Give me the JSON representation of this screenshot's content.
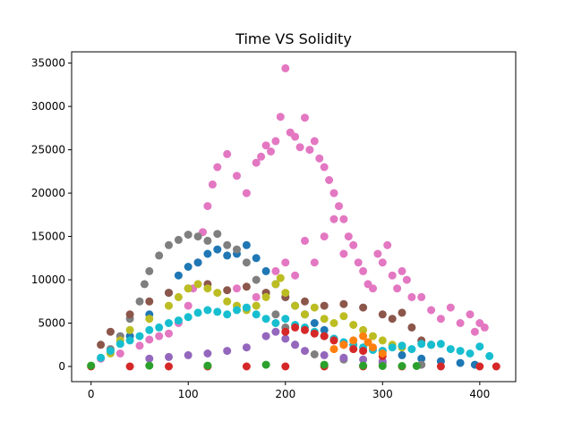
{
  "chart_data": {
    "type": "scatter",
    "title": "Time VS Solidity",
    "xlabel": "",
    "ylabel": "",
    "xlim": [
      -20,
      437
    ],
    "ylim": [
      -1750,
      36300
    ],
    "xticks": [
      0,
      100,
      200,
      300,
      400
    ],
    "yticks": [
      0,
      5000,
      10000,
      15000,
      20000,
      25000,
      30000,
      35000
    ],
    "grid": false,
    "legend": "none",
    "series": [
      {
        "color": "#e377c2",
        "values": [
          [
            10,
            900
          ],
          [
            30,
            1500
          ],
          [
            50,
            2400
          ],
          [
            60,
            3100
          ],
          [
            70,
            3500
          ],
          [
            80,
            3800
          ],
          [
            90,
            5000
          ],
          [
            100,
            7000
          ],
          [
            105,
            9000
          ],
          [
            110,
            12000
          ],
          [
            115,
            15500
          ],
          [
            120,
            18500
          ],
          [
            125,
            21000
          ],
          [
            130,
            23000
          ],
          [
            140,
            24500
          ],
          [
            150,
            22000
          ],
          [
            160,
            20000
          ],
          [
            170,
            23500
          ],
          [
            175,
            24200
          ],
          [
            180,
            25500
          ],
          [
            185,
            24800
          ],
          [
            190,
            26000
          ],
          [
            195,
            28800
          ],
          [
            200,
            34400
          ],
          [
            205,
            27000
          ],
          [
            210,
            26500
          ],
          [
            215,
            25300
          ],
          [
            220,
            28700
          ],
          [
            225,
            25000
          ],
          [
            230,
            26000
          ],
          [
            235,
            24000
          ],
          [
            240,
            23000
          ],
          [
            245,
            21500
          ],
          [
            250,
            20000
          ],
          [
            255,
            18500
          ],
          [
            260,
            17000
          ],
          [
            265,
            15000
          ],
          [
            270,
            14000
          ],
          [
            275,
            12000
          ],
          [
            280,
            11000
          ],
          [
            285,
            9500
          ],
          [
            290,
            9000
          ],
          [
            295,
            13000
          ],
          [
            300,
            12000
          ],
          [
            305,
            14000
          ],
          [
            310,
            10500
          ],
          [
            315,
            9000
          ],
          [
            320,
            11000
          ],
          [
            325,
            10000
          ],
          [
            330,
            8000
          ],
          [
            340,
            8000
          ],
          [
            350,
            6500
          ],
          [
            360,
            5500
          ],
          [
            370,
            6800
          ],
          [
            380,
            5000
          ],
          [
            390,
            6000
          ],
          [
            395,
            4000
          ],
          [
            400,
            5000
          ],
          [
            405,
            4500
          ],
          [
            200,
            12000
          ],
          [
            220,
            14500
          ],
          [
            240,
            15000
          ],
          [
            250,
            17000
          ],
          [
            260,
            13000
          ],
          [
            150,
            9000
          ],
          [
            170,
            8000
          ],
          [
            190,
            11000
          ],
          [
            210,
            10500
          ],
          [
            230,
            12000
          ]
        ]
      },
      {
        "color": "#1f77b4",
        "values": [
          [
            40,
            3500
          ],
          [
            60,
            6000
          ],
          [
            80,
            8500
          ],
          [
            90,
            10500
          ],
          [
            100,
            11500
          ],
          [
            110,
            12000
          ],
          [
            120,
            13000
          ],
          [
            130,
            13500
          ],
          [
            140,
            12800
          ],
          [
            150,
            13000
          ],
          [
            160,
            14000
          ],
          [
            170,
            12500
          ],
          [
            180,
            11000
          ],
          [
            190,
            9500
          ],
          [
            200,
            8000
          ],
          [
            210,
            7000
          ],
          [
            220,
            6000
          ],
          [
            230,
            5000
          ],
          [
            240,
            4200
          ],
          [
            250,
            3200
          ],
          [
            270,
            2500
          ],
          [
            300,
            1800
          ],
          [
            320,
            1300
          ],
          [
            340,
            900
          ],
          [
            360,
            600
          ],
          [
            380,
            400
          ],
          [
            395,
            200
          ]
        ]
      },
      {
        "color": "#7f7f7f",
        "values": [
          [
            20,
            2000
          ],
          [
            30,
            3500
          ],
          [
            40,
            5500
          ],
          [
            50,
            7500
          ],
          [
            55,
            9500
          ],
          [
            60,
            11000
          ],
          [
            70,
            12800
          ],
          [
            80,
            14000
          ],
          [
            90,
            14600
          ],
          [
            100,
            15200
          ],
          [
            110,
            15000
          ],
          [
            120,
            14500
          ],
          [
            130,
            15300
          ],
          [
            140,
            14000
          ],
          [
            150,
            13500
          ],
          [
            160,
            12000
          ],
          [
            170,
            10000
          ],
          [
            180,
            8500
          ],
          [
            190,
            6000
          ],
          [
            200,
            4500
          ],
          [
            210,
            2500
          ],
          [
            230,
            1400
          ],
          [
            260,
            800
          ],
          [
            300,
            400
          ],
          [
            340,
            200
          ]
        ]
      },
      {
        "color": "#8c564b",
        "values": [
          [
            10,
            2500
          ],
          [
            20,
            4000
          ],
          [
            40,
            6000
          ],
          [
            60,
            7500
          ],
          [
            80,
            8500
          ],
          [
            100,
            9000
          ],
          [
            120,
            9500
          ],
          [
            140,
            8800
          ],
          [
            160,
            9200
          ],
          [
            180,
            8500
          ],
          [
            200,
            8000
          ],
          [
            220,
            7500
          ],
          [
            240,
            7000
          ],
          [
            260,
            7200
          ],
          [
            280,
            6800
          ],
          [
            300,
            6000
          ],
          [
            310,
            5500
          ],
          [
            320,
            6200
          ],
          [
            330,
            4500
          ],
          [
            340,
            3000
          ],
          [
            350,
            2500
          ]
        ]
      },
      {
        "color": "#bcbd22",
        "values": [
          [
            20,
            1500
          ],
          [
            30,
            3000
          ],
          [
            40,
            4200
          ],
          [
            60,
            5500
          ],
          [
            80,
            7000
          ],
          [
            90,
            8000
          ],
          [
            100,
            9000
          ],
          [
            110,
            9500
          ],
          [
            120,
            9000
          ],
          [
            130,
            8500
          ],
          [
            140,
            7500
          ],
          [
            150,
            7000
          ],
          [
            160,
            6500
          ],
          [
            170,
            7000
          ],
          [
            180,
            8000
          ],
          [
            190,
            9500
          ],
          [
            195,
            10200
          ],
          [
            200,
            8500
          ],
          [
            210,
            7000
          ],
          [
            220,
            6000
          ],
          [
            230,
            6800
          ],
          [
            240,
            5500
          ],
          [
            250,
            5000
          ],
          [
            260,
            5800
          ],
          [
            270,
            4800
          ],
          [
            280,
            4200
          ],
          [
            290,
            3500
          ],
          [
            300,
            3000
          ],
          [
            310,
            2500
          ],
          [
            320,
            2200
          ]
        ]
      },
      {
        "color": "#17becf",
        "values": [
          [
            10,
            1000
          ],
          [
            20,
            1800
          ],
          [
            30,
            2600
          ],
          [
            40,
            3000
          ],
          [
            50,
            3500
          ],
          [
            60,
            4200
          ],
          [
            70,
            4500
          ],
          [
            80,
            5000
          ],
          [
            90,
            5300
          ],
          [
            100,
            5700
          ],
          [
            110,
            6200
          ],
          [
            120,
            6500
          ],
          [
            130,
            6300
          ],
          [
            140,
            6000
          ],
          [
            150,
            6500
          ],
          [
            160,
            6800
          ],
          [
            170,
            6000
          ],
          [
            180,
            5500
          ],
          [
            190,
            5000
          ],
          [
            200,
            5500
          ],
          [
            210,
            4800
          ],
          [
            220,
            4500
          ],
          [
            230,
            4000
          ],
          [
            240,
            3500
          ],
          [
            250,
            3200
          ],
          [
            260,
            2800
          ],
          [
            270,
            2500
          ],
          [
            280,
            2200
          ],
          [
            290,
            1900
          ],
          [
            300,
            1800
          ],
          [
            310,
            2200
          ],
          [
            320,
            2400
          ],
          [
            330,
            2000
          ],
          [
            340,
            2600
          ],
          [
            350,
            2500
          ],
          [
            360,
            2600
          ],
          [
            370,
            2000
          ],
          [
            380,
            1800
          ],
          [
            390,
            1500
          ],
          [
            400,
            2300
          ],
          [
            410,
            1200
          ]
        ]
      },
      {
        "color": "#9467bd",
        "values": [
          [
            60,
            900
          ],
          [
            80,
            1100
          ],
          [
            100,
            1300
          ],
          [
            120,
            1500
          ],
          [
            140,
            1800
          ],
          [
            160,
            2200
          ],
          [
            180,
            3500
          ],
          [
            190,
            4000
          ],
          [
            200,
            3200
          ],
          [
            210,
            2500
          ],
          [
            220,
            1800
          ],
          [
            240,
            1300
          ],
          [
            260,
            1000
          ],
          [
            280,
            800
          ],
          [
            300,
            600
          ]
        ]
      },
      {
        "color": "#d62728",
        "values": [
          [
            0,
            0
          ],
          [
            40,
            0
          ],
          [
            80,
            0
          ],
          [
            120,
            0
          ],
          [
            160,
            0
          ],
          [
            200,
            0
          ],
          [
            240,
            0
          ],
          [
            280,
            0
          ],
          [
            320,
            0
          ],
          [
            360,
            0
          ],
          [
            400,
            0
          ],
          [
            417,
            0
          ],
          [
            200,
            4000
          ],
          [
            210,
            4500
          ],
          [
            220,
            4200
          ],
          [
            230,
            3800
          ],
          [
            240,
            3500
          ],
          [
            250,
            3000
          ],
          [
            260,
            2500
          ],
          [
            270,
            2000
          ],
          [
            280,
            1800
          ],
          [
            300,
            1200
          ]
        ]
      },
      {
        "color": "#2ca02c",
        "values": [
          [
            0,
            100
          ],
          [
            60,
            100
          ],
          [
            120,
            100
          ],
          [
            180,
            200
          ],
          [
            240,
            200
          ],
          [
            280,
            100
          ],
          [
            300,
            50
          ],
          [
            320,
            50
          ],
          [
            335,
            50
          ]
        ]
      },
      {
        "color": "#ff7f0e",
        "values": [
          [
            250,
            2000
          ],
          [
            260,
            2500
          ],
          [
            270,
            3000
          ],
          [
            280,
            3500
          ],
          [
            285,
            2800
          ],
          [
            290,
            2200
          ],
          [
            300,
            1500
          ]
        ]
      }
    ]
  }
}
